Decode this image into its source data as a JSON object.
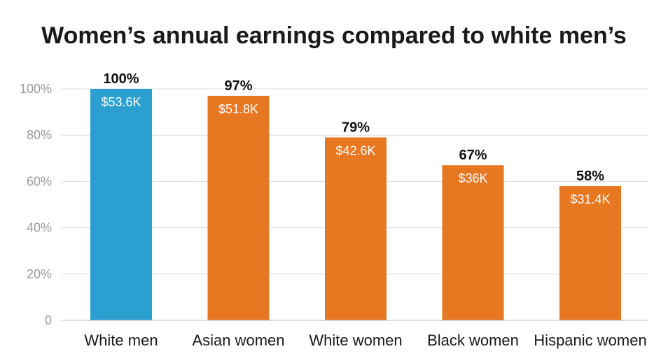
{
  "chart_data": {
    "type": "bar",
    "title": "Women’s annual earnings compared to white men’s",
    "categories": [
      "White men",
      "Asian women",
      "White women",
      "Black women",
      "Hispanic women"
    ],
    "values": [
      100,
      97,
      79,
      67,
      58
    ],
    "value_labels": [
      "100%",
      "97%",
      "79%",
      "67%",
      "58%"
    ],
    "earnings_labels": [
      "$53.6K",
      "$51.8K",
      "$42.6K",
      "$36K",
      "$31.4K"
    ],
    "colors": [
      "#2a9fd0",
      "#e87722",
      "#e87722",
      "#e87722",
      "#e87722"
    ],
    "ylim": [
      0,
      100
    ],
    "yticks": [
      0,
      20,
      40,
      60,
      80,
      100
    ],
    "ytick_labels": [
      "0",
      "20%",
      "40%",
      "60%",
      "80%",
      "100%"
    ],
    "grid": true,
    "xlabel": "",
    "ylabel": ""
  }
}
